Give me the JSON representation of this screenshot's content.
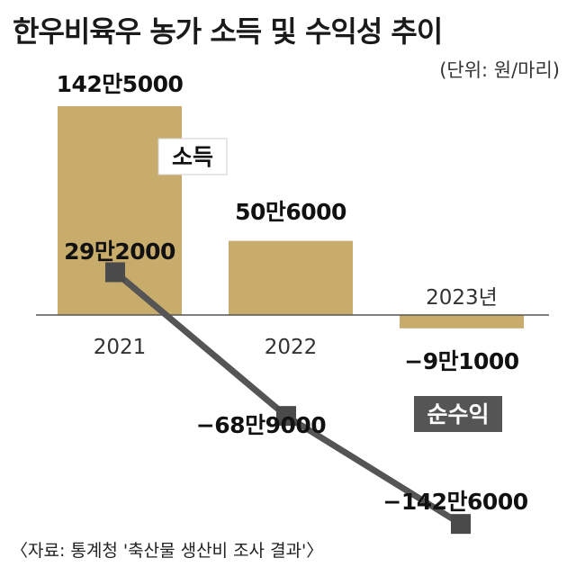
{
  "title": "한우비육우 농가 소득 및 수익성 추이",
  "unit": "(단위: 원/마리)",
  "source": "〈자료: 통계청 '축산물 생산비 조사 결과'〉",
  "colors": {
    "income": "#c8ac6c",
    "net": "#555555",
    "marker": "#4a4a4a"
  },
  "chart_data": {
    "type": "bar+line",
    "categories": [
      "2021",
      "2022",
      "2023년"
    ],
    "series": [
      {
        "name": "소득",
        "type": "bar",
        "values": [
          1425000,
          506000,
          -91000
        ],
        "labels": [
          "142만5000",
          "50만6000",
          "−9만1000"
        ]
      },
      {
        "name": "순수익",
        "type": "line",
        "values": [
          292000,
          -689000,
          -1426000
        ],
        "labels": [
          "29만2000",
          "−68만9000",
          "−142만6000"
        ]
      }
    ],
    "ylim": [
      -1700000,
      1700000
    ],
    "grid": false,
    "legend": "inline"
  }
}
